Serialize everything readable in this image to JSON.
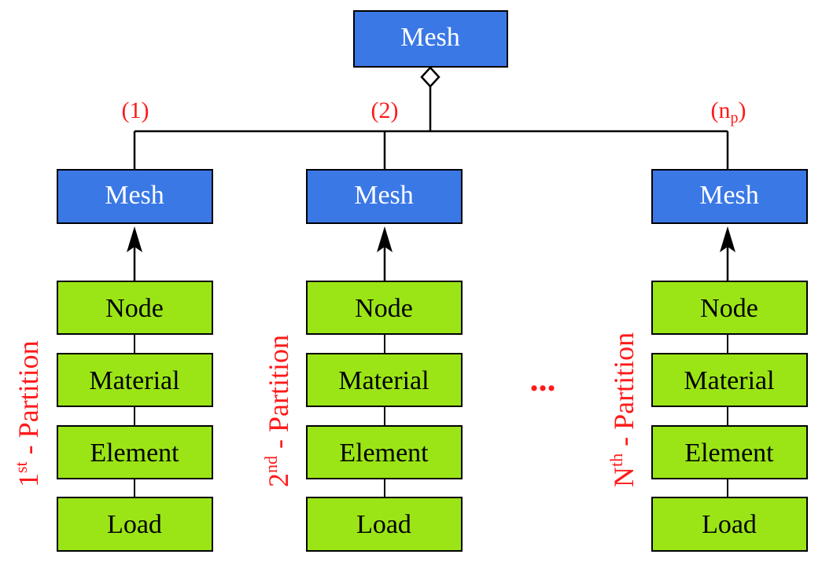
{
  "root": {
    "label": "Mesh"
  },
  "multiplicity": [
    "(1)",
    "(2)",
    "(n",
    "p",
    ")"
  ],
  "partitions": [
    {
      "mesh_label": "Mesh",
      "components": [
        "Node",
        "Material",
        "Element",
        "Load"
      ],
      "side_label": {
        "index": "1",
        "sup": "st",
        "text": " - Partition"
      }
    },
    {
      "mesh_label": "Mesh",
      "components": [
        "Node",
        "Material",
        "Element",
        "Load"
      ],
      "side_label": {
        "index": "2",
        "sup": "nd",
        "text": " - Partition"
      }
    },
    {
      "mesh_label": "Mesh",
      "components": [
        "Node",
        "Material",
        "Element",
        "Load"
      ],
      "side_label": {
        "index": "N",
        "sup": "th",
        "text": " - Partition"
      }
    }
  ],
  "ellipsis": "...",
  "colors": {
    "mesh_fill": "#3a78e6",
    "component_fill": "#9be516",
    "annotation": "#ff1a1a",
    "line": "#000000"
  }
}
